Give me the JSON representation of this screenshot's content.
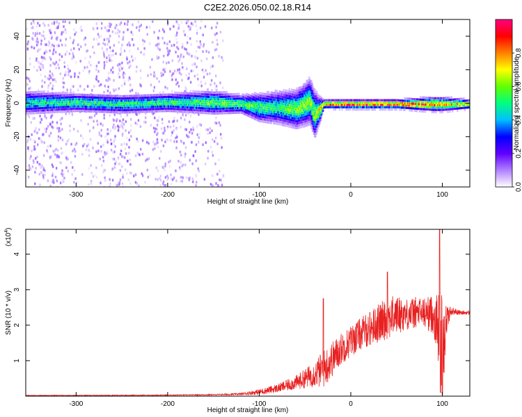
{
  "figure": {
    "title": "C2E2.2026.050.02.18.R14"
  },
  "chart_data": [
    {
      "type": "heatmap",
      "xlabel": "Height of straight line (km)",
      "ylabel": "Frequency (Hz)",
      "xlim": [
        -355,
        130
      ],
      "ylim": [
        -50,
        50
      ],
      "xticks": [
        -300,
        -200,
        -100,
        0,
        100
      ],
      "yticks": [
        -40,
        -20,
        0,
        20,
        40
      ],
      "grid": false,
      "colorbar": {
        "label": "Normalized spectral amplitude",
        "range": [
          0.0,
          1.0
        ],
        "ticks": [
          0.0,
          0.2,
          0.4,
          0.6,
          0.8
        ],
        "colormap": [
          "#ffffff",
          "#b080ff",
          "#6000ff",
          "#0000ff",
          "#00c0ff",
          "#00ff80",
          "#60ff00",
          "#ffff00",
          "#ff8000",
          "#ff0000",
          "#ff0080"
        ]
      },
      "scatter_background": {
        "x_range": [
          -355,
          -140
        ],
        "y_range": [
          -50,
          50
        ],
        "amplitude_range": [
          0.02,
          0.15
        ]
      },
      "ridge": {
        "center_hz": [
          [
            -355,
            1
          ],
          [
            -300,
            1
          ],
          [
            -250,
            0
          ],
          [
            -200,
            1
          ],
          [
            -150,
            1
          ],
          [
            -120,
            0
          ],
          [
            -100,
            -2
          ],
          [
            -80,
            -2
          ],
          [
            -60,
            -3
          ],
          [
            -50,
            0
          ],
          [
            -45,
            2
          ],
          [
            -40,
            -6
          ],
          [
            -35,
            -4
          ],
          [
            -30,
            0
          ],
          [
            0,
            0
          ],
          [
            50,
            0
          ],
          [
            90,
            0
          ],
          [
            100,
            0
          ],
          [
            130,
            0
          ]
        ],
        "halfwidth_hz": [
          [
            -355,
            5
          ],
          [
            -300,
            4
          ],
          [
            -200,
            4
          ],
          [
            -150,
            5
          ],
          [
            -120,
            4
          ],
          [
            -100,
            6
          ],
          [
            -80,
            7
          ],
          [
            -60,
            8
          ],
          [
            -40,
            10
          ],
          [
            -35,
            6
          ],
          [
            -30,
            2
          ],
          [
            0,
            2
          ],
          [
            50,
            2
          ],
          [
            90,
            3
          ],
          [
            100,
            3
          ],
          [
            130,
            2
          ]
        ],
        "peak_amplitude": [
          [
            -355,
            0.45
          ],
          [
            -300,
            0.5
          ],
          [
            -200,
            0.5
          ],
          [
            -150,
            0.55
          ],
          [
            -100,
            0.55
          ],
          [
            -80,
            0.5
          ],
          [
            -60,
            0.6
          ],
          [
            -40,
            0.6
          ],
          [
            -30,
            0.7
          ],
          [
            -20,
            0.8
          ],
          [
            0,
            0.85
          ],
          [
            50,
            0.85
          ],
          [
            90,
            0.8
          ],
          [
            100,
            0.75
          ],
          [
            130,
            0.7
          ]
        ]
      }
    },
    {
      "type": "line",
      "xlabel": "Height of straight line (km)",
      "ylabel": "SNR (10 * v/v)",
      "y_multiplier": "(x10",
      "y_multiplier_exponent": "4",
      "y_multiplier_close": ")",
      "xlim": [
        -355,
        130
      ],
      "ylim": [
        0,
        4.7
      ],
      "xticks": [
        -300,
        -200,
        -100,
        0,
        100
      ],
      "yticks": [
        1,
        2,
        3,
        4
      ],
      "grid": false,
      "series": [
        {
          "color": "#e82020",
          "envelope": {
            "x": [
              -355,
              -300,
              -200,
              -150,
              -120,
              -100,
              -80,
              -60,
              -40,
              -30,
              -20,
              -10,
              0,
              10,
              20,
              30,
              40,
              50,
              60,
              70,
              80,
              90,
              95,
              100,
              105,
              110,
              120,
              130
            ],
            "mean": [
              0.02,
              0.02,
              0.03,
              0.04,
              0.06,
              0.12,
              0.22,
              0.38,
              0.62,
              0.75,
              1.05,
              1.35,
              1.55,
              1.75,
              1.9,
              2.05,
              2.2,
              2.3,
              2.3,
              2.35,
              2.35,
              2.3,
              2.0,
              1.4,
              2.2,
              2.4,
              2.35,
              2.35
            ],
            "noise": [
              0.01,
              0.01,
              0.01,
              0.015,
              0.03,
              0.08,
              0.12,
              0.2,
              0.35,
              0.55,
              0.5,
              0.45,
              0.45,
              0.45,
              0.5,
              0.55,
              0.6,
              0.55,
              0.45,
              0.45,
              0.45,
              0.55,
              0.9,
              1.6,
              0.4,
              0.12,
              0.06,
              0.06
            ]
          },
          "peaks": [
            [
              -30,
              2.75
            ],
            [
              40,
              3.5
            ],
            [
              97,
              4.7
            ]
          ],
          "dips": [
            [
              100,
              0.05
            ],
            [
              98,
              0.1
            ]
          ]
        }
      ]
    }
  ]
}
